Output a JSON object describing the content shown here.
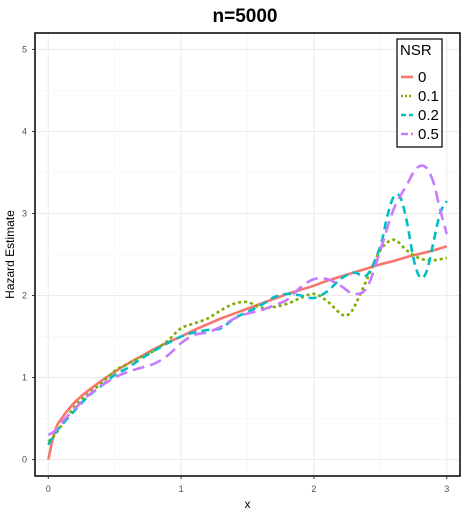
{
  "chart_data": {
    "type": "line",
    "title": "n=5000",
    "xlabel": "x",
    "ylabel": "Hazard Estimate",
    "xlim": [
      -0.1,
      3.1
    ],
    "ylim": [
      -0.2,
      5.2
    ],
    "xticks": [
      0,
      1,
      2,
      3
    ],
    "yticks": [
      0,
      1,
      2,
      3,
      4,
      5
    ],
    "grid": true,
    "legend": {
      "title": "NSR",
      "placement": "top-right"
    },
    "series": [
      {
        "name": "0",
        "color": "#F8766D",
        "dash": "solid",
        "x": [
          0,
          0.05,
          0.1,
          0.2,
          0.3,
          0.4,
          0.5,
          0.6,
          0.7,
          0.8,
          0.9,
          1.0,
          1.1,
          1.2,
          1.3,
          1.4,
          1.5,
          1.6,
          1.7,
          1.8,
          1.9,
          2.0,
          2.1,
          2.2,
          2.3,
          2.4,
          2.5,
          2.6,
          2.7,
          2.8,
          2.9,
          3.0
        ],
        "y": [
          0,
          0.35,
          0.5,
          0.7,
          0.84,
          0.96,
          1.07,
          1.17,
          1.26,
          1.35,
          1.43,
          1.5,
          1.58,
          1.65,
          1.72,
          1.78,
          1.84,
          1.9,
          1.96,
          2.02,
          2.07,
          2.12,
          2.18,
          2.23,
          2.28,
          2.33,
          2.38,
          2.42,
          2.47,
          2.51,
          2.55,
          2.6
        ]
      },
      {
        "name": "0.1",
        "color": "#7CAE00",
        "dash": "dotted",
        "x": [
          0,
          0.05,
          0.1,
          0.2,
          0.3,
          0.4,
          0.5,
          0.6,
          0.7,
          0.8,
          0.9,
          1.0,
          1.1,
          1.2,
          1.3,
          1.4,
          1.5,
          1.6,
          1.7,
          1.8,
          1.9,
          2.0,
          2.1,
          2.2,
          2.25,
          2.3,
          2.4,
          2.5,
          2.6,
          2.7,
          2.8,
          2.9,
          3.0
        ],
        "y": [
          0.22,
          0.3,
          0.42,
          0.65,
          0.8,
          0.93,
          1.08,
          1.17,
          1.25,
          1.33,
          1.45,
          1.6,
          1.66,
          1.72,
          1.82,
          1.9,
          1.92,
          1.85,
          1.86,
          1.9,
          1.97,
          2.02,
          1.93,
          1.78,
          1.76,
          1.85,
          2.2,
          2.55,
          2.68,
          2.55,
          2.45,
          2.43,
          2.46
        ]
      },
      {
        "name": "0.2",
        "color": "#00BFC4",
        "dash": "dashed",
        "x": [
          0,
          0.05,
          0.1,
          0.2,
          0.3,
          0.4,
          0.5,
          0.6,
          0.7,
          0.8,
          0.9,
          1.0,
          1.1,
          1.2,
          1.3,
          1.4,
          1.5,
          1.6,
          1.7,
          1.8,
          1.9,
          2.0,
          2.1,
          2.2,
          2.3,
          2.4,
          2.5,
          2.55,
          2.6,
          2.65,
          2.7,
          2.75,
          2.8,
          2.85,
          2.9,
          2.95,
          3.0
        ],
        "y": [
          0.18,
          0.32,
          0.42,
          0.6,
          0.77,
          0.9,
          1.03,
          1.12,
          1.23,
          1.33,
          1.42,
          1.5,
          1.55,
          1.58,
          1.6,
          1.72,
          1.8,
          1.88,
          1.98,
          2.02,
          2.0,
          1.97,
          2.05,
          2.2,
          2.28,
          2.25,
          2.6,
          2.95,
          3.2,
          3.2,
          2.9,
          2.45,
          2.22,
          2.3,
          2.65,
          3.0,
          3.15
        ]
      },
      {
        "name": "0.5",
        "color": "#C77CFF",
        "dash": "longdash",
        "x": [
          0,
          0.05,
          0.1,
          0.2,
          0.3,
          0.4,
          0.5,
          0.6,
          0.7,
          0.8,
          0.9,
          1.0,
          1.1,
          1.2,
          1.3,
          1.4,
          1.5,
          1.6,
          1.7,
          1.8,
          1.9,
          2.0,
          2.1,
          2.2,
          2.3,
          2.4,
          2.5,
          2.6,
          2.7,
          2.75,
          2.8,
          2.85,
          2.9,
          2.95,
          3.0
        ],
        "y": [
          0.3,
          0.35,
          0.45,
          0.62,
          0.78,
          0.9,
          1.0,
          1.07,
          1.12,
          1.17,
          1.27,
          1.42,
          1.52,
          1.55,
          1.62,
          1.72,
          1.78,
          1.82,
          1.88,
          1.95,
          2.1,
          2.2,
          2.2,
          2.12,
          2.02,
          2.1,
          2.55,
          3.05,
          3.35,
          3.5,
          3.58,
          3.55,
          3.38,
          3.05,
          2.75
        ]
      }
    ]
  }
}
